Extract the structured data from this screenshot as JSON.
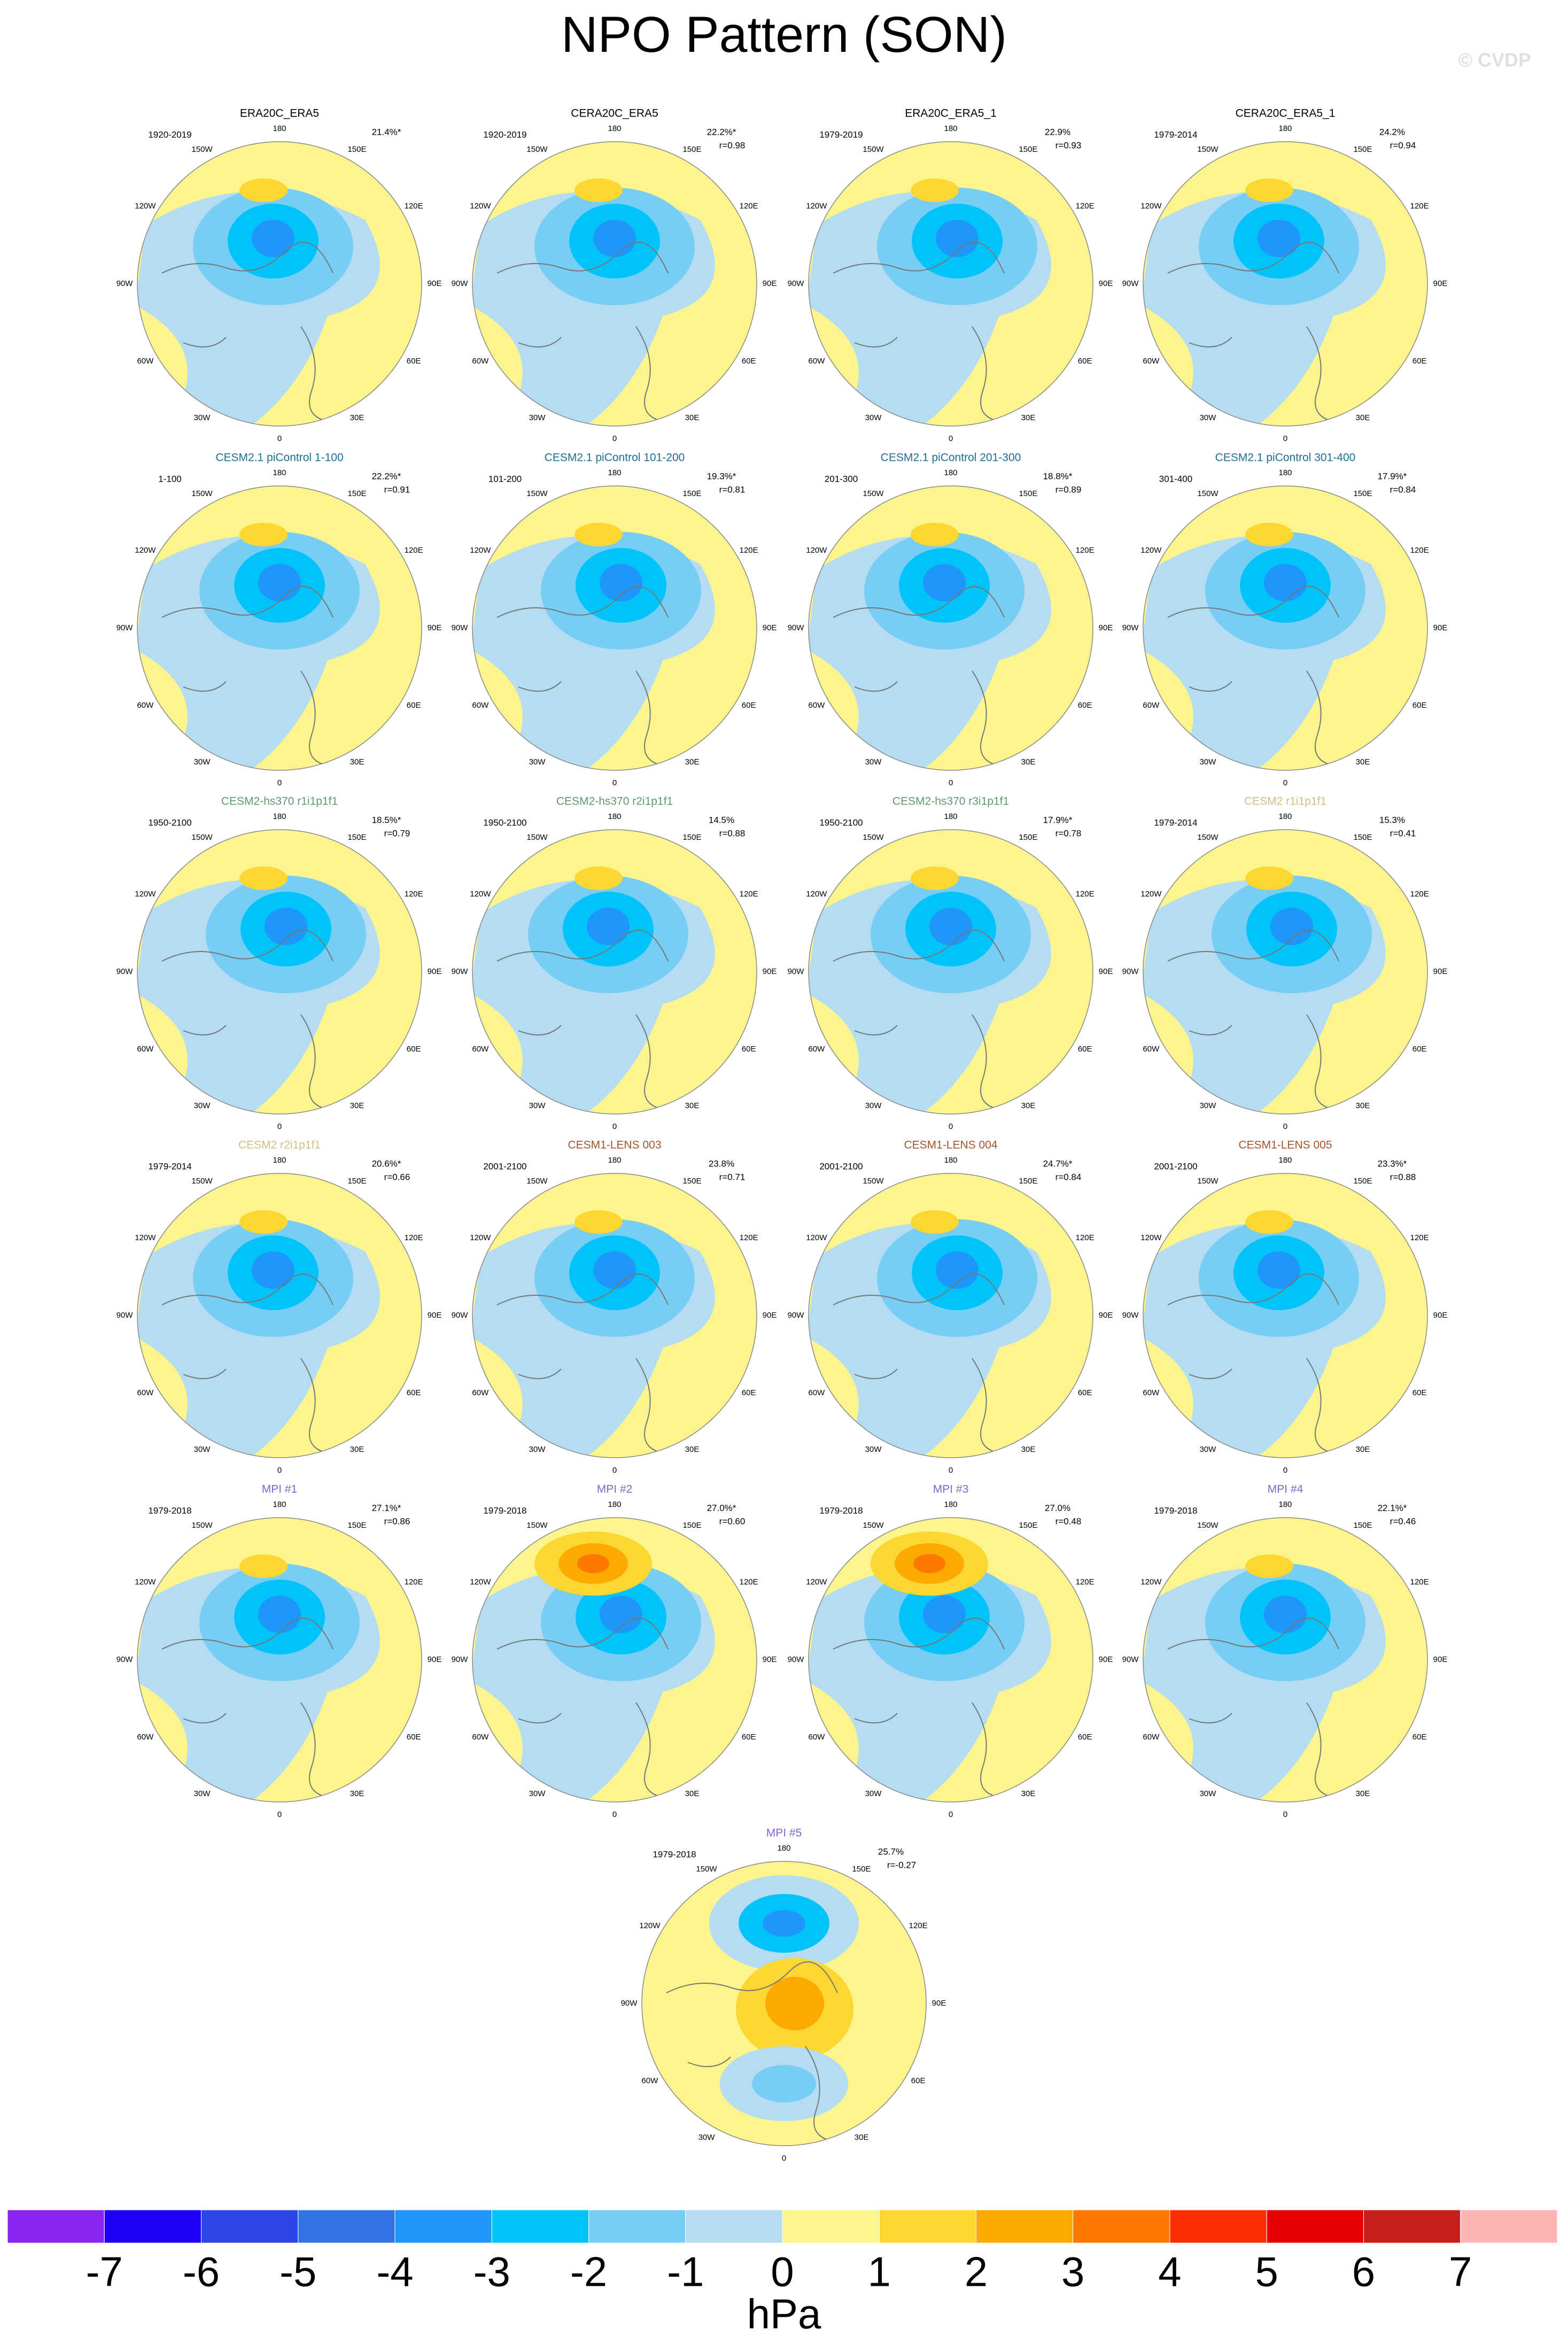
{
  "title": "NPO Pattern (SON)",
  "watermark": "© CVDP",
  "lon_labels": [
    "180",
    "150E",
    "120E",
    "90E",
    "60E",
    "30E",
    "0",
    "30W",
    "60W",
    "90W",
    "120W",
    "150W"
  ],
  "panels": [
    {
      "title": "ERA20C_ERA5",
      "title_color": "#000000",
      "period": "1920-2019",
      "pct": "21.4%*"
    },
    {
      "title": "CERA20C_ERA5",
      "title_color": "#000000",
      "period": "1920-2019",
      "pct": "22.2%*",
      "r": "r=0.98"
    },
    {
      "title": "ERA20C_ERA5_1",
      "title_color": "#000000",
      "period": "1979-2019",
      "pct": "22.9%",
      "r": "r=0.93"
    },
    {
      "title": "CERA20C_ERA5_1",
      "title_color": "#000000",
      "period": "1979-2014",
      "pct": "24.2%",
      "r": "r=0.94"
    },
    {
      "title": "CESM2.1 piControl 1-100",
      "title_color": "#1f6e94",
      "period": "1-100",
      "pct": "22.2%*",
      "r": "r=0.91"
    },
    {
      "title": "CESM2.1 piControl 101-200",
      "title_color": "#1f6e94",
      "period": "101-200",
      "pct": "19.3%*",
      "r": "r=0.81"
    },
    {
      "title": "CESM2.1 piControl 201-300",
      "title_color": "#1f6e94",
      "period": "201-300",
      "pct": "18.8%*",
      "r": "r=0.89"
    },
    {
      "title": "CESM2.1 piControl 301-400",
      "title_color": "#1f6e94",
      "period": "301-400",
      "pct": "17.9%*",
      "r": "r=0.84"
    },
    {
      "title": "CESM2-hs370 r1i1p1f1",
      "title_color": "#5f9a6e",
      "period": "1950-2100",
      "pct": "18.5%*",
      "r": "r=0.79"
    },
    {
      "title": "CESM2-hs370 r2i1p1f1",
      "title_color": "#5f9a6e",
      "period": "1950-2100",
      "pct": "14.5%",
      "r": "r=0.88"
    },
    {
      "title": "CESM2-hs370 r3i1p1f1",
      "title_color": "#5f9a6e",
      "period": "1950-2100",
      "pct": "17.9%*",
      "r": "r=0.78"
    },
    {
      "title": "CESM2 r1i1p1f1",
      "title_color": "#d2bf84",
      "period": "1979-2014",
      "pct": "15.3%",
      "r": "r=0.41"
    },
    {
      "title": "CESM2 r2i1p1f1",
      "title_color": "#d2bf84",
      "period": "1979-2014",
      "pct": "20.6%*",
      "r": "r=0.66"
    },
    {
      "title": "CESM1-LENS 003",
      "title_color": "#a5532e",
      "period": "2001-2100",
      "pct": "23.8%",
      "r": "r=0.71"
    },
    {
      "title": "CESM1-LENS 004",
      "title_color": "#a5532e",
      "period": "2001-2100",
      "pct": "24.7%*",
      "r": "r=0.84"
    },
    {
      "title": "CESM1-LENS 005",
      "title_color": "#a5532e",
      "period": "2001-2100",
      "pct": "23.3%*",
      "r": "r=0.88"
    },
    {
      "title": "MPI #1",
      "title_color": "#8464d2",
      "period": "1979-2018",
      "pct": "27.1%*",
      "r": "r=0.86"
    },
    {
      "title": "MPI #2",
      "title_color": "#8464d2",
      "period": "1979-2018",
      "pct": "27.0%*",
      "r": "r=0.60"
    },
    {
      "title": "MPI #3",
      "title_color": "#8464d2",
      "period": "1979-2018",
      "pct": "27.0%",
      "r": "r=0.48"
    },
    {
      "title": "MPI #4",
      "title_color": "#8464d2",
      "period": "1979-2018",
      "pct": "22.1%*",
      "r": "r=0.46"
    },
    {
      "title": "MPI #5",
      "title_color": "#8464d2",
      "period": "1979-2018",
      "pct": "25.7%",
      "r": "r=-0.27"
    }
  ],
  "colorbar": {
    "ticks": [
      -7,
      -6,
      -5,
      -4,
      -3,
      -2,
      -1,
      0,
      1,
      2,
      3,
      4,
      5,
      6,
      7
    ],
    "unit": "hPa",
    "colors": [
      "#8a24f0",
      "#1e00fa",
      "#2d44e6",
      "#3274e6",
      "#1e96fa",
      "#00c3fa",
      "#78cdf5",
      "#b4dcf2",
      "#fcf58e",
      "#fcd732",
      "#fcaa00",
      "#fc7800",
      "#fc2d00",
      "#e60000",
      "#c81e1e",
      "#fcb4b4"
    ]
  }
}
